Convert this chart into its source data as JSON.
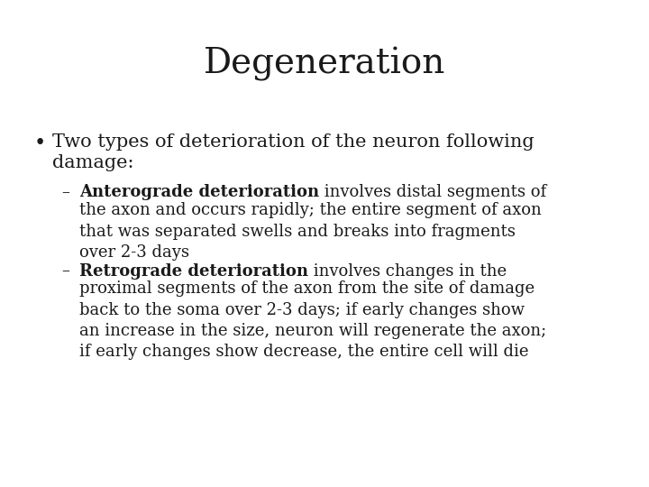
{
  "title": "Degeneration",
  "background_color": "#ffffff",
  "text_color": "#1a1a1a",
  "title_fontsize": 28,
  "body_fontsize": 15,
  "sub_fontsize": 13,
  "font_family": "DejaVu Serif",
  "bullet_char": "•",
  "dash_char": "–",
  "bullet_line1": "Two types of deterioration of the neuron following",
  "bullet_line2": "damage:",
  "sub1_bold": "Anterograde deterioration",
  "sub1_rest_line1": " involves distal segments of",
  "sub1_rest_lines": "the axon and occurs rapidly; the entire segment of axon\nthat was separated swells and breaks into fragments\nover 2-3 days",
  "sub2_bold": "Retrograde deterioration",
  "sub2_rest_line1": " involves changes in the",
  "sub2_rest_lines": "proximal segments of the axon from the site of damage\nback to the soma over 2-3 days; if early changes show\nan increase in the size, neuron will regenerate the axon;\nif early changes show decrease, the entire cell will die"
}
